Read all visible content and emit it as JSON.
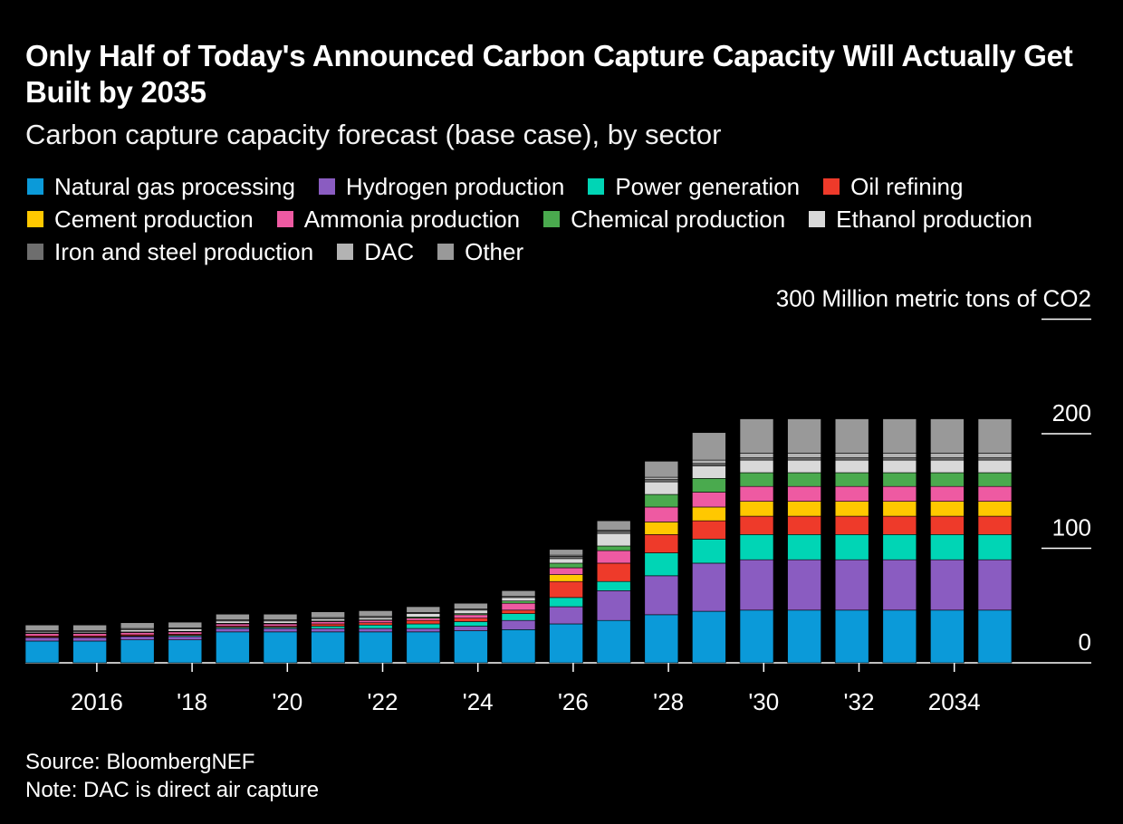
{
  "title": "Only Half of Today's Announced Carbon Capture Capacity Will Actually Get Built by 2035",
  "subtitle": "Carbon capture capacity forecast (base case), by sector",
  "source": "Source: BloombergNEF",
  "note": "Note: DAC is direct air capture",
  "chart_data": {
    "type": "bar",
    "stacked": true,
    "unit_label": "Million metric tons of CO2",
    "x": [
      2015,
      2016,
      2017,
      2018,
      2019,
      2020,
      2021,
      2022,
      2023,
      2024,
      2025,
      2026,
      2027,
      2028,
      2029,
      2030,
      2031,
      2032,
      2033,
      2034,
      2035
    ],
    "x_tick_labels": [
      {
        "x": 2016,
        "label": "2016"
      },
      {
        "x": 2018,
        "label": "'18"
      },
      {
        "x": 2020,
        "label": "'20"
      },
      {
        "x": 2022,
        "label": "'22"
      },
      {
        "x": 2024,
        "label": "'24"
      },
      {
        "x": 2026,
        "label": "'26"
      },
      {
        "x": 2028,
        "label": "'28"
      },
      {
        "x": 2030,
        "label": "'30"
      },
      {
        "x": 2032,
        "label": "'32"
      },
      {
        "x": 2034,
        "label": "2034"
      }
    ],
    "y_ticks": [
      {
        "value": 0,
        "label": "0"
      },
      {
        "value": 100,
        "label": "100"
      },
      {
        "value": 200,
        "label": "200"
      },
      {
        "value": 300,
        "label": "300 Million metric tons of CO2"
      }
    ],
    "ylim": [
      0,
      300
    ],
    "legend_position": "top-left",
    "series": [
      {
        "name": "Natural gas processing",
        "color": "#0b9ad9",
        "values": [
          19,
          19,
          20,
          20,
          27,
          27,
          27,
          27,
          27,
          28,
          29,
          34,
          37,
          42,
          45,
          46,
          46,
          46,
          46,
          46,
          46
        ]
      },
      {
        "name": "Hydrogen production",
        "color": "#8a5cc1",
        "values": [
          3,
          3,
          3,
          3,
          3,
          3,
          3,
          3,
          3,
          4,
          8,
          15,
          26,
          34,
          42,
          44,
          44,
          44,
          44,
          44,
          44
        ]
      },
      {
        "name": "Power generation",
        "color": "#00d5b5",
        "values": [
          0.5,
          0.5,
          0.5,
          1,
          1,
          1,
          2,
          3,
          4,
          4,
          6,
          8,
          8,
          20,
          21,
          22,
          22,
          22,
          22,
          22,
          22
        ]
      },
      {
        "name": "Oil refining",
        "color": "#ee3a2a",
        "values": [
          1,
          1,
          1,
          1,
          1,
          1,
          2,
          2,
          3,
          3,
          3,
          14,
          16,
          16,
          16,
          16,
          16,
          16,
          16,
          16,
          16
        ]
      },
      {
        "name": "Cement production",
        "color": "#ffc800",
        "values": [
          0,
          0,
          0,
          0,
          0,
          0,
          0,
          0,
          0,
          0,
          0,
          6,
          0,
          11,
          12,
          13,
          13,
          13,
          13,
          13,
          13
        ]
      },
      {
        "name": "Ammonia production",
        "color": "#ee5aa2",
        "values": [
          2,
          2,
          2,
          2,
          2,
          2,
          2,
          2,
          2,
          3,
          6,
          6,
          11,
          13,
          13,
          13,
          13,
          13,
          13,
          13,
          13
        ]
      },
      {
        "name": "Chemical production",
        "color": "#4aaa4e",
        "values": [
          0.5,
          0.5,
          0.5,
          0.5,
          0.5,
          0.5,
          0.5,
          0.5,
          1,
          1,
          2,
          4,
          4,
          11,
          12,
          12,
          12,
          12,
          12,
          12,
          12
        ]
      },
      {
        "name": "Ethanol production",
        "color": "#d9d9d9",
        "values": [
          1,
          1,
          2,
          2,
          2,
          2,
          2,
          2,
          3,
          3,
          3,
          4,
          11,
          11,
          11,
          11,
          11,
          11,
          11,
          11,
          11
        ]
      },
      {
        "name": "Iron and steel production",
        "color": "#6e6e6e",
        "values": [
          1,
          1,
          1,
          1,
          1,
          1,
          1,
          1,
          1,
          1,
          1,
          2,
          2,
          2,
          2,
          2,
          2,
          2,
          2,
          2,
          2
        ]
      },
      {
        "name": "DAC",
        "color": "#b3b3b3",
        "values": [
          0,
          0,
          0,
          0,
          0,
          0,
          0,
          0,
          0,
          0,
          0,
          1,
          1,
          2,
          3,
          4,
          4,
          4,
          4,
          4,
          4
        ]
      },
      {
        "name": "Other",
        "color": "#999999",
        "values": [
          5,
          5,
          5,
          5,
          5,
          5,
          5,
          5,
          5,
          5,
          5,
          5,
          8,
          14,
          24,
          30,
          30,
          30,
          30,
          30,
          30
        ]
      }
    ]
  }
}
